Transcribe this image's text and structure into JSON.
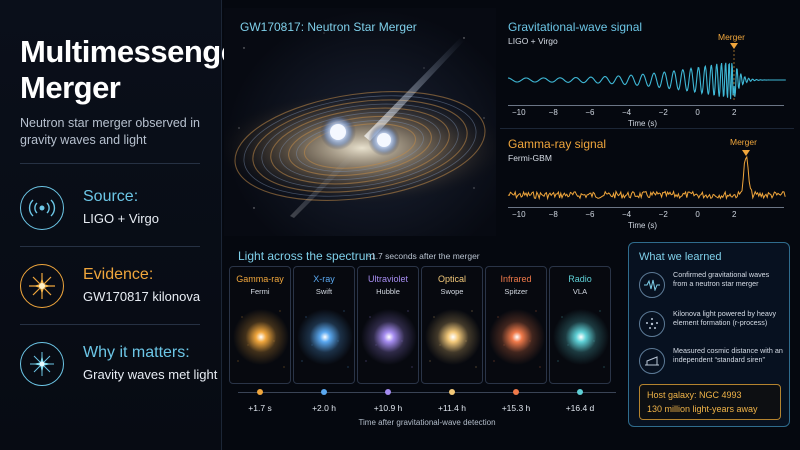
{
  "title_line1": "Multimessenger",
  "title_line2": "Merger",
  "subtitle": "Neutron star merger observed in gravity waves and light",
  "features": [
    {
      "label": "Source:",
      "value": "LIGO + Virgo",
      "icon": "radio-waves-icon",
      "color": "#6cc6e6"
    },
    {
      "label": "Evidence:",
      "value": "GW170817 kilonova",
      "icon": "starburst-icon",
      "color": "#f0a63c"
    },
    {
      "label": "Why it matters:",
      "value": "Gravity waves met light",
      "icon": "sparkle-icon",
      "color": "#6cc6e6"
    }
  ],
  "hero": {
    "title": "GW170817: Neutron Star Merger"
  },
  "gw_panel": {
    "title": "Gravitational-wave signal",
    "subtitle": "LIGO + Virgo",
    "marker": "Merger",
    "ticks": [
      "−10",
      "−8",
      "−6",
      "−4",
      "−2",
      "0",
      "2"
    ],
    "xlabel": "Time (s)",
    "color": "#3fb8d6"
  },
  "gamma_panel": {
    "title": "Gamma-ray signal",
    "subtitle": "Fermi-GBM",
    "marker": "Merger",
    "ticks": [
      "−10",
      "−8",
      "−6",
      "−4",
      "−2",
      "0",
      "2"
    ],
    "xlabel": "Time (s)",
    "color": "#f0a63c"
  },
  "spectrum": {
    "title": "Light across the spectrum",
    "note": "~1.7 seconds after the merger",
    "cards": [
      {
        "band": "Gamma-ray",
        "instrument": "Fermi",
        "time": "+1.7 s",
        "color": "#f0a63c"
      },
      {
        "band": "X-ray",
        "instrument": "Swift",
        "time": "+2.0 h",
        "color": "#5aa8f0"
      },
      {
        "band": "Ultraviolet",
        "instrument": "Hubble",
        "time": "+10.9 h",
        "color": "#a58cf0"
      },
      {
        "band": "Optical",
        "instrument": "Swope",
        "time": "+11.4 h",
        "color": "#f3c97a"
      },
      {
        "band": "Infrared",
        "instrument": "Spitzer",
        "time": "+15.3 h",
        "color": "#f07a4a"
      },
      {
        "band": "Radio",
        "instrument": "VLA",
        "time": "+16.4 d",
        "color": "#5ed0d6"
      }
    ],
    "caption": "Time after gravitational-wave detection"
  },
  "learned": {
    "title": "What we learned",
    "items": [
      {
        "text": "Confirmed gravitational waves from a neutron star merger",
        "icon": "waveform-icon"
      },
      {
        "text": "Kilonova light powered by heavy element formation (r-process)",
        "icon": "particles-icon"
      },
      {
        "text": "Measured cosmic distance with an independent “standard siren”",
        "icon": "siren-icon"
      }
    ],
    "host_line1": "Host galaxy: NGC 4993",
    "host_line2": "130 million light-years away"
  }
}
